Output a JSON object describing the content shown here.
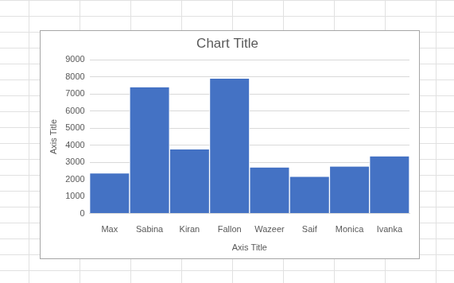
{
  "chart_data": {
    "type": "bar",
    "title": "Chart Title",
    "xlabel": "Axis Title",
    "ylabel": "Axis Title",
    "categories": [
      "Max",
      "Sabina",
      "Kiran",
      "Fallon",
      "Wazeer",
      "Saif",
      "Monica",
      "Ivanka"
    ],
    "values": [
      2350,
      7400,
      3750,
      7900,
      2700,
      2150,
      2750,
      3350
    ],
    "color": "#4472c4",
    "ylim": [
      0,
      9000
    ],
    "yticks": [
      0,
      1000,
      2000,
      3000,
      4000,
      5000,
      6000,
      7000,
      8000,
      9000
    ],
    "grid": true
  }
}
